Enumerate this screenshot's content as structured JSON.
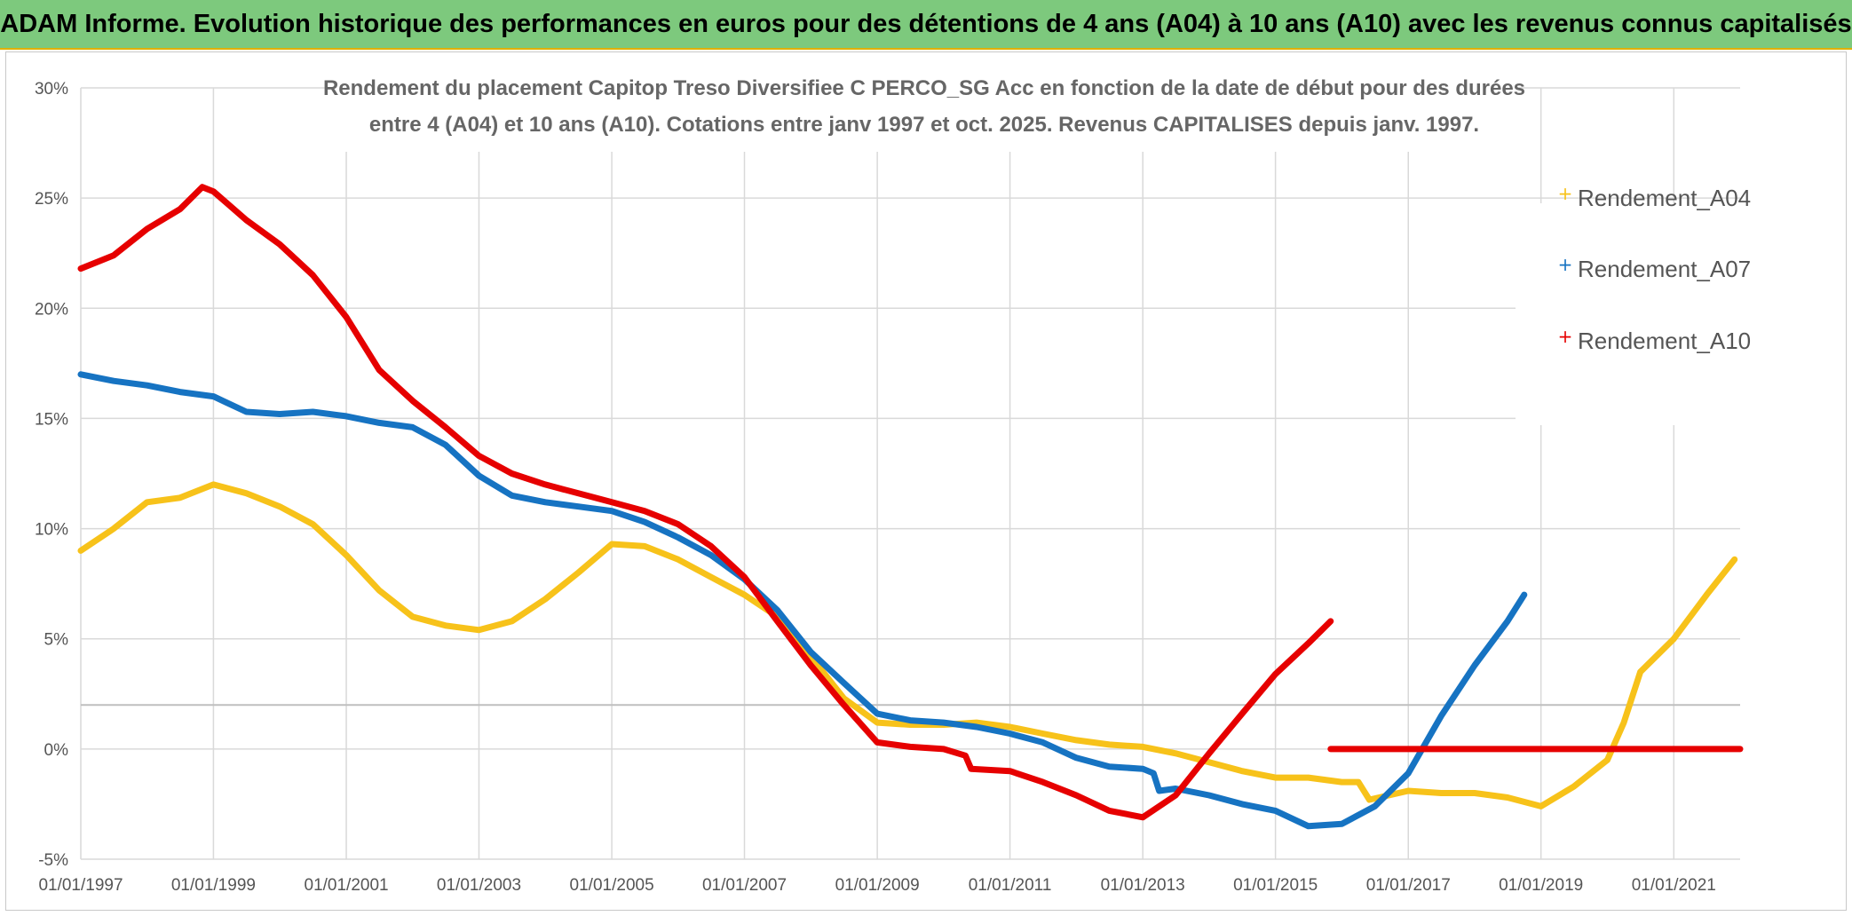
{
  "header": {
    "title": "ADAM Informe. Evolution historique des performances en euros pour des détentions de 4 ans (A04) à 10 ans (A10) avec les revenus connus capitalisés"
  },
  "colors": {
    "banner": "#7dc97d",
    "A04": "#f7c21a",
    "A07": "#1673c2",
    "A10": "#e60000",
    "grid": "#d9d9d9",
    "refline": "#bfbfbf"
  },
  "chart_data": {
    "type": "line",
    "title_lines": [
      "Rendement du placement Capitop Treso Diversifiee C PERCO_SG Acc en fonction de la date de début pour des durées",
      "entre 4 (A04) et 10 ans (A10). Cotations entre janv 1997 et oct. 2025. Revenus CAPITALISES depuis janv. 1997."
    ],
    "xlabel": "",
    "ylabel": "",
    "x_ticks": [
      "01/01/1997",
      "01/01/1999",
      "01/01/2001",
      "01/01/2003",
      "01/01/2005",
      "01/01/2007",
      "01/01/2009",
      "01/01/2011",
      "01/01/2013",
      "01/01/2015",
      "01/01/2017",
      "01/01/2019",
      "01/01/2021"
    ],
    "y_ticks": [
      "30%",
      "25%",
      "20%",
      "15%",
      "10%",
      "5%",
      "0%",
      "-5%"
    ],
    "xlim": [
      "1997-01-01",
      "2022-01-01"
    ],
    "ylim": [
      -5,
      30
    ],
    "reference_line_y": 2,
    "grid": true,
    "legend_position": "right",
    "series": [
      {
        "name": "Rendement_A04",
        "x": [
          "1997-01-01",
          "1997-07-01",
          "1998-01-01",
          "1998-07-01",
          "1999-01-01",
          "1999-07-01",
          "2000-01-01",
          "2000-07-01",
          "2001-01-01",
          "2001-07-01",
          "2002-01-01",
          "2002-07-01",
          "2003-01-01",
          "2003-07-01",
          "2004-01-01",
          "2004-07-01",
          "2005-01-01",
          "2005-07-01",
          "2006-01-01",
          "2006-07-01",
          "2007-01-01",
          "2007-07-01",
          "2008-01-01",
          "2008-07-01",
          "2009-01-01",
          "2009-07-01",
          "2010-01-01",
          "2010-07-01",
          "2011-01-01",
          "2011-07-01",
          "2012-01-01",
          "2012-07-01",
          "2013-01-01",
          "2013-07-01",
          "2014-01-01",
          "2014-07-01",
          "2015-01-01",
          "2015-07-01",
          "2016-01-01",
          "2016-04-01",
          "2016-06-01",
          "2017-01-01",
          "2017-07-01",
          "2018-01-01",
          "2018-07-01",
          "2019-01-01",
          "2019-07-01",
          "2020-01-01",
          "2020-04-01",
          "2020-07-01",
          "2021-01-01",
          "2021-07-01",
          "2021-12-01"
        ],
        "values": [
          9.0,
          10.0,
          11.2,
          11.4,
          12.0,
          11.6,
          11.0,
          10.2,
          8.8,
          7.2,
          6.0,
          5.6,
          5.4,
          5.8,
          6.8,
          8.0,
          9.3,
          9.2,
          8.6,
          7.8,
          7.0,
          6.0,
          4.2,
          2.3,
          1.2,
          1.1,
          1.1,
          1.2,
          1.0,
          0.7,
          0.4,
          0.2,
          0.1,
          -0.2,
          -0.6,
          -1.0,
          -1.3,
          -1.3,
          -1.5,
          -1.5,
          -2.3,
          -1.9,
          -2.0,
          -2.0,
          -2.2,
          -2.6,
          -1.7,
          -0.5,
          1.2,
          3.5,
          5.0,
          7.0,
          8.6
        ]
      },
      {
        "name": "Rendement_A07",
        "x": [
          "1997-01-01",
          "1997-07-01",
          "1998-01-01",
          "1998-07-01",
          "1999-01-01",
          "1999-07-01",
          "2000-01-01",
          "2000-07-01",
          "2001-01-01",
          "2001-07-01",
          "2002-01-01",
          "2002-07-01",
          "2003-01-01",
          "2003-07-01",
          "2004-01-01",
          "2004-07-01",
          "2005-01-01",
          "2005-07-01",
          "2006-01-01",
          "2006-07-01",
          "2007-01-01",
          "2007-07-01",
          "2008-01-01",
          "2008-07-01",
          "2009-01-01",
          "2009-07-01",
          "2010-01-01",
          "2010-07-01",
          "2011-01-01",
          "2011-07-01",
          "2012-01-01",
          "2012-07-01",
          "2013-01-01",
          "2013-03-01",
          "2013-04-01",
          "2013-07-01",
          "2014-01-01",
          "2014-07-01",
          "2015-01-01",
          "2015-07-01",
          "2016-01-01",
          "2016-07-01",
          "2017-01-01",
          "2017-07-01",
          "2018-01-01",
          "2018-07-01",
          "2018-10-01"
        ],
        "values": [
          17.0,
          16.7,
          16.5,
          16.2,
          16.0,
          15.3,
          15.2,
          15.3,
          15.1,
          14.8,
          14.6,
          13.8,
          12.4,
          11.5,
          11.2,
          11.0,
          10.8,
          10.3,
          9.6,
          8.8,
          7.7,
          6.3,
          4.4,
          3.0,
          1.6,
          1.3,
          1.2,
          1.0,
          0.7,
          0.3,
          -0.4,
          -0.8,
          -0.9,
          -1.1,
          -1.9,
          -1.8,
          -2.1,
          -2.5,
          -2.8,
          -3.5,
          -3.4,
          -2.6,
          -1.1,
          1.5,
          3.8,
          5.8,
          7.0
        ]
      },
      {
        "name": "Rendement_A10",
        "x": [
          "1997-01-01",
          "1997-07-01",
          "1998-01-01",
          "1998-07-01",
          "1998-11-01",
          "1999-01-01",
          "1999-07-01",
          "2000-01-01",
          "2000-07-01",
          "2001-01-01",
          "2001-07-01",
          "2002-01-01",
          "2002-07-01",
          "2003-01-01",
          "2003-07-01",
          "2004-01-01",
          "2004-07-01",
          "2005-01-01",
          "2005-07-01",
          "2006-01-01",
          "2006-07-01",
          "2007-01-01",
          "2007-07-01",
          "2008-01-01",
          "2008-07-01",
          "2009-01-01",
          "2009-07-01",
          "2010-01-01",
          "2010-05-01",
          "2010-06-01",
          "2011-01-01",
          "2011-07-01",
          "2012-01-01",
          "2012-07-01",
          "2013-01-01",
          "2013-07-01",
          "2014-01-01",
          "2014-07-01",
          "2015-01-01",
          "2015-07-01",
          "2015-11-01"
        ],
        "values": [
          21.8,
          22.4,
          23.6,
          24.5,
          25.5,
          25.3,
          24.0,
          22.9,
          21.5,
          19.6,
          17.2,
          15.8,
          14.6,
          13.3,
          12.5,
          12.0,
          11.6,
          11.2,
          10.8,
          10.2,
          9.2,
          7.8,
          5.8,
          3.8,
          2.0,
          0.3,
          0.1,
          0.0,
          -0.3,
          -0.9,
          -1.0,
          -1.5,
          -2.1,
          -2.8,
          -3.1,
          -2.1,
          -0.2,
          1.6,
          3.4,
          4.8,
          5.8
        ]
      },
      {
        "name": "Rendement_A10",
        "x": [
          "2015-11-01",
          "2022-01-01"
        ],
        "values": [
          0.0,
          0.0
        ]
      }
    ]
  }
}
